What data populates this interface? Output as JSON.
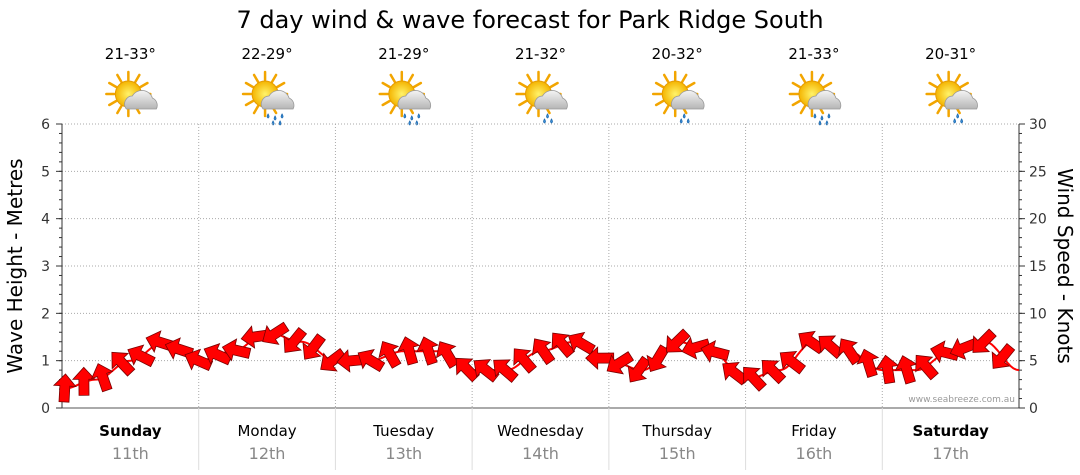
{
  "chart_data": {
    "type": "line",
    "title": "7 day wind & wave forecast for Park Ridge South",
    "ylabel_left": "Wave Height - Metres",
    "ylabel_right": "Wind Speed - Knots",
    "ylim_left": [
      0,
      6
    ],
    "ylim_right": [
      0,
      30
    ],
    "yticks_left": [
      "0",
      "1",
      "2",
      "3",
      "4",
      "5",
      "6"
    ],
    "yticks_right": [
      "0",
      "5",
      "10",
      "15",
      "20",
      "25",
      "30"
    ],
    "grid": true,
    "watermark": "www.seabreeze.com.au",
    "days": [
      {
        "name": "Sunday",
        "date": "11th",
        "temp": "21-33°",
        "icon": "partly-cloudy-icon",
        "bold": true
      },
      {
        "name": "Monday",
        "date": "12th",
        "temp": "22-29°",
        "icon": "partly-cloudy-rain-icon",
        "bold": false
      },
      {
        "name": "Tuesday",
        "date": "13th",
        "temp": "21-29°",
        "icon": "partly-cloudy-rain-icon",
        "bold": false
      },
      {
        "name": "Wednesday",
        "date": "14th",
        "temp": "21-32°",
        "icon": "partly-cloudy-shower-icon",
        "bold": false
      },
      {
        "name": "Thursday",
        "date": "15th",
        "temp": "20-32°",
        "icon": "partly-cloudy-shower-icon",
        "bold": false
      },
      {
        "name": "Friday",
        "date": "16th",
        "temp": "21-33°",
        "icon": "partly-cloudy-rain-icon",
        "bold": false
      },
      {
        "name": "Saturday",
        "date": "17th",
        "temp": "20-31°",
        "icon": "partly-cloudy-shower-icon",
        "bold": true
      }
    ],
    "series": [
      {
        "name": "Wind Speed - Knots",
        "color": "#ff0000",
        "x_days": [
          0.0,
          0.25,
          0.5,
          0.75,
          1.0,
          1.25,
          1.5,
          1.75,
          2.0,
          2.25,
          2.5,
          2.75,
          3.0,
          3.25,
          3.5,
          3.75,
          4.0,
          4.25,
          4.5,
          4.75,
          5.0,
          5.25,
          5.5,
          5.75,
          6.0,
          6.25,
          6.5,
          6.75,
          7.0
        ],
        "values": [
          2,
          3,
          5,
          7,
          5,
          6,
          8,
          7,
          5,
          5,
          6,
          6,
          4,
          4,
          6,
          7,
          5,
          4,
          7,
          6,
          3,
          4,
          7,
          6,
          4,
          4,
          6,
          7,
          4
        ]
      }
    ]
  }
}
